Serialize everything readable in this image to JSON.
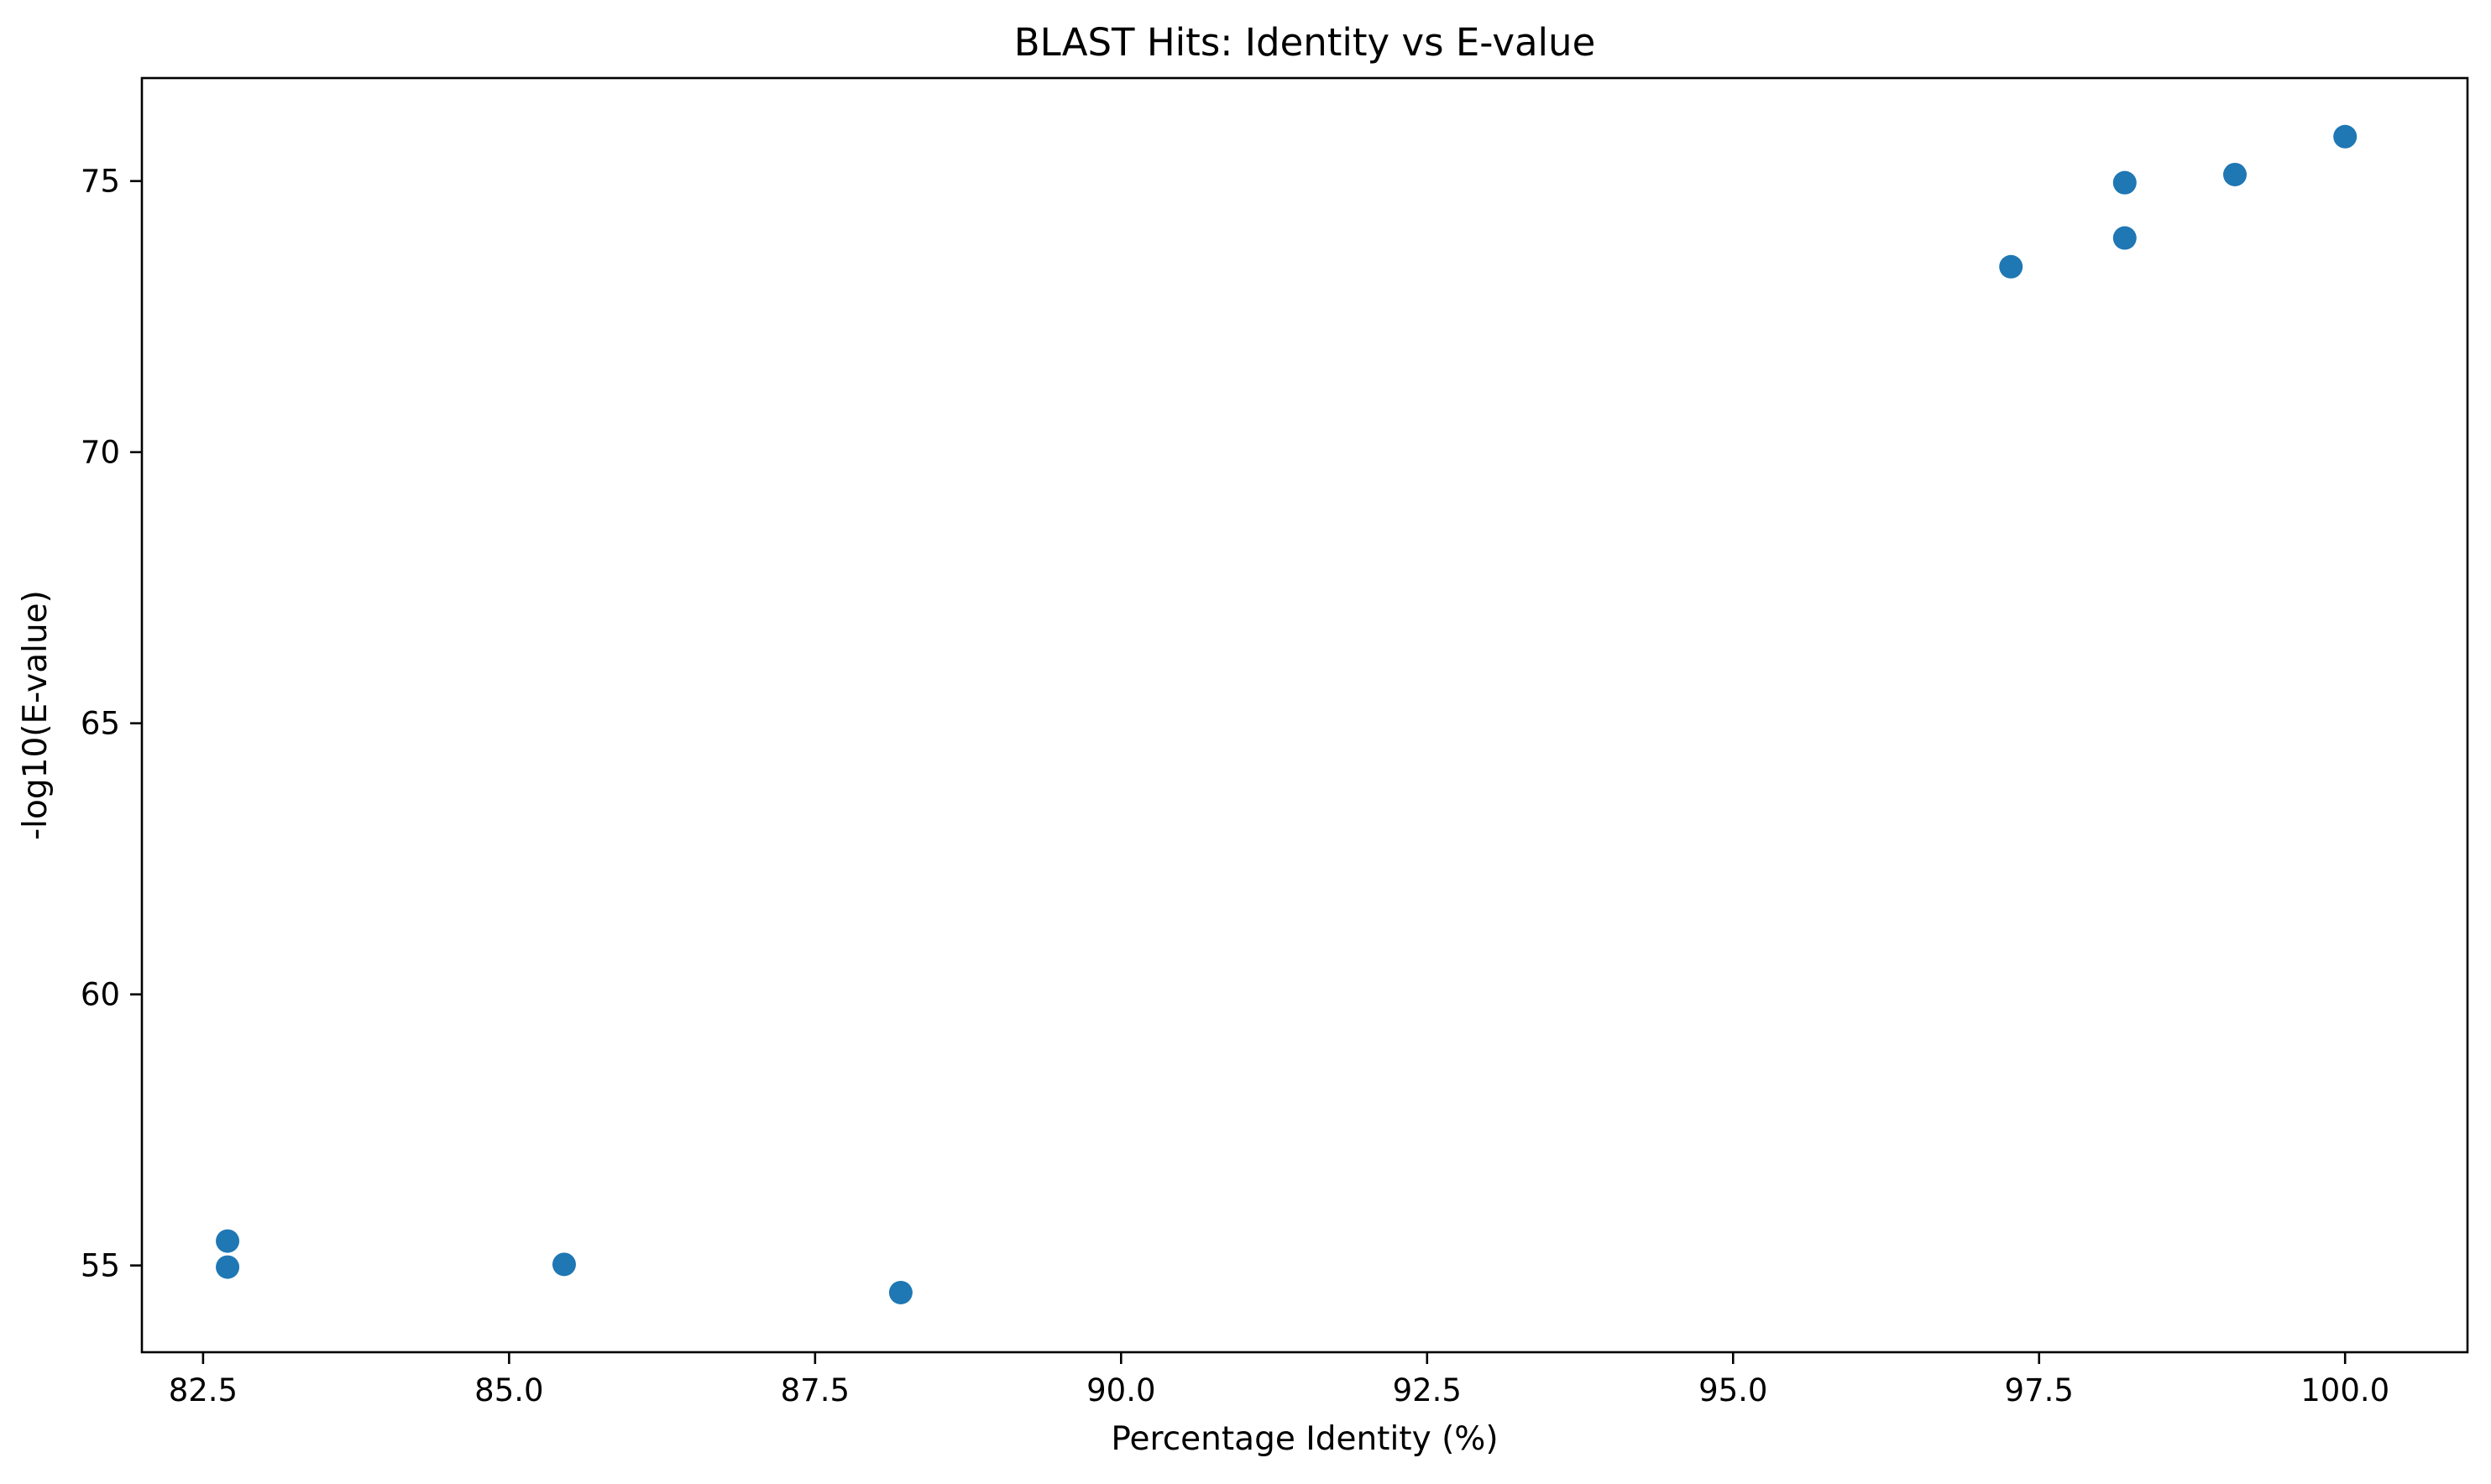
{
  "chart_data": {
    "type": "scatter",
    "title": "BLAST Hits: Identity vs E-value",
    "xlabel": "Percentage Identity (%)",
    "ylabel": "-log10(E-value)",
    "xlim": [
      82.0,
      101.0
    ],
    "ylim": [
      53.4,
      76.9
    ],
    "xticks": [
      82.5,
      85.0,
      87.5,
      90.0,
      92.5,
      95.0,
      97.5,
      100.0
    ],
    "xtick_labels": [
      "82.5",
      "85.0",
      "87.5",
      "90.0",
      "92.5",
      "95.0",
      "97.5",
      "100.0"
    ],
    "yticks": [
      55,
      60,
      65,
      70,
      75
    ],
    "ytick_labels": [
      "55",
      "60",
      "65",
      "70",
      "75"
    ],
    "grid": false,
    "point_color": "#1f77b4",
    "points": [
      {
        "x": 82.7,
        "y": 55.45
      },
      {
        "x": 82.7,
        "y": 54.97
      },
      {
        "x": 85.45,
        "y": 55.02
      },
      {
        "x": 88.2,
        "y": 54.5
      },
      {
        "x": 97.27,
        "y": 73.42
      },
      {
        "x": 98.2,
        "y": 73.95
      },
      {
        "x": 98.2,
        "y": 74.97
      },
      {
        "x": 99.1,
        "y": 75.12
      },
      {
        "x": 100.0,
        "y": 75.82
      }
    ]
  }
}
